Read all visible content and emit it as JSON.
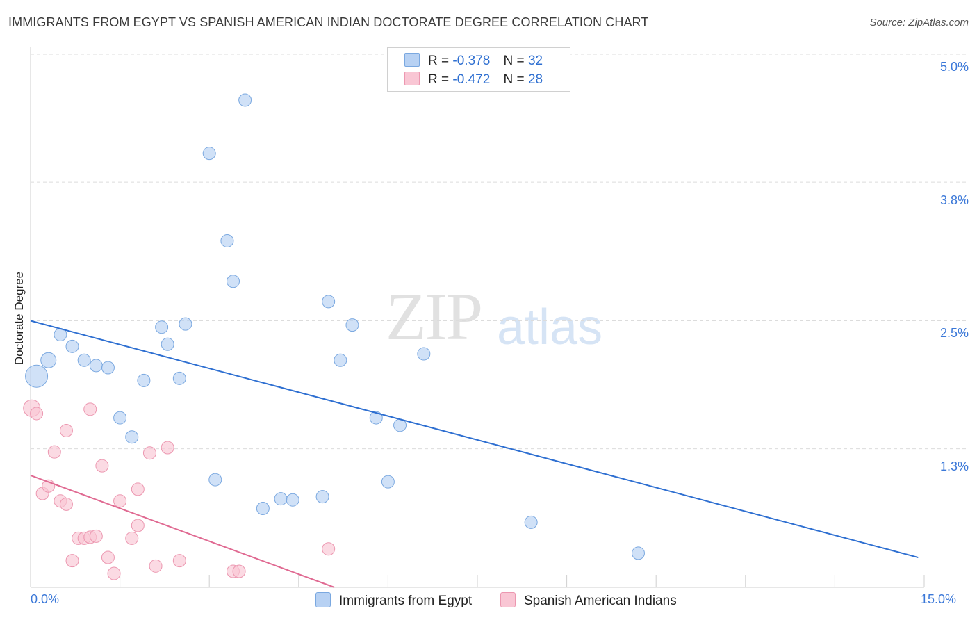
{
  "title": "IMMIGRANTS FROM EGYPT VS SPANISH AMERICAN INDIAN DOCTORATE DEGREE CORRELATION CHART",
  "source": "Source: ZipAtlas.com",
  "watermark": {
    "zip": "ZIP",
    "atlas": "atlas"
  },
  "legend": {
    "rows": [
      {
        "r_label": "R =",
        "r_value": "-0.378",
        "n_label": "N =",
        "n_value": "32"
      },
      {
        "r_label": "R =",
        "r_value": "-0.472",
        "n_label": "N =",
        "n_value": "28"
      }
    ]
  },
  "colors": {
    "blue_fill": "#b7d1f3",
    "blue_stroke": "#7aa8e0",
    "blue_line": "#2e6fd1",
    "pink_fill": "#f9c6d4",
    "pink_stroke": "#ec97b0",
    "pink_line": "#e06a92",
    "grid": "#dcdcdc",
    "tick_text": "#3b78d8"
  },
  "chart_data": {
    "type": "scatter",
    "title": "IMMIGRANTS FROM EGYPT VS SPANISH AMERICAN INDIAN DOCTORATE DEGREE CORRELATION CHART",
    "xlabel": "",
    "ylabel": "Doctorate Degree",
    "xlim": [
      0,
      15
    ],
    "ylim": [
      0,
      5.0
    ],
    "x_tick_labels": [
      "0.0%",
      "15.0%"
    ],
    "y_ticks": [
      1.3,
      2.5,
      3.8,
      5.0
    ],
    "y_tick_labels": [
      "1.3%",
      "2.5%",
      "3.8%",
      "5.0%"
    ],
    "grid": true,
    "series": [
      {
        "name": "Immigrants from Egypt",
        "color": "#b7d1f3",
        "points": [
          [
            0.1,
            1.98,
            16
          ],
          [
            0.3,
            2.13,
            11
          ],
          [
            0.5,
            2.37,
            9
          ],
          [
            0.7,
            2.26,
            9
          ],
          [
            0.9,
            2.13,
            9
          ],
          [
            1.1,
            2.08,
            9
          ],
          [
            1.3,
            2.06,
            9
          ],
          [
            1.5,
            1.59,
            9
          ],
          [
            1.7,
            1.41,
            9
          ],
          [
            1.9,
            1.94,
            9
          ],
          [
            2.2,
            2.44,
            9
          ],
          [
            2.3,
            2.28,
            9
          ],
          [
            2.5,
            1.96,
            9
          ],
          [
            2.6,
            2.47,
            9
          ],
          [
            3.0,
            4.07,
            9
          ],
          [
            3.1,
            1.01,
            9
          ],
          [
            3.3,
            3.25,
            9
          ],
          [
            3.4,
            2.87,
            9
          ],
          [
            3.6,
            4.57,
            9
          ],
          [
            3.9,
            0.74,
            9
          ],
          [
            4.2,
            0.83,
            9
          ],
          [
            4.4,
            0.82,
            9
          ],
          [
            4.9,
            0.85,
            9
          ],
          [
            5.0,
            2.68,
            9
          ],
          [
            5.2,
            2.13,
            9
          ],
          [
            5.4,
            2.46,
            9
          ],
          [
            5.8,
            1.59,
            9
          ],
          [
            6.0,
            0.99,
            9
          ],
          [
            6.2,
            1.52,
            9
          ],
          [
            6.6,
            2.19,
            9
          ],
          [
            8.4,
            0.61,
            9
          ],
          [
            10.2,
            0.32,
            9
          ]
        ],
        "trend": {
          "x": [
            0.0,
            14.9
          ],
          "y": [
            2.5,
            0.28
          ]
        }
      },
      {
        "name": "Spanish American Indians",
        "color": "#f9c6d4",
        "points": [
          [
            0.02,
            1.68,
            12
          ],
          [
            0.1,
            1.63,
            9
          ],
          [
            0.2,
            0.88,
            9
          ],
          [
            0.3,
            0.95,
            9
          ],
          [
            0.4,
            1.27,
            9
          ],
          [
            0.5,
            0.81,
            9
          ],
          [
            0.6,
            0.78,
            9
          ],
          [
            0.6,
            1.47,
            9
          ],
          [
            0.7,
            0.25,
            9
          ],
          [
            0.8,
            0.46,
            9
          ],
          [
            0.9,
            0.46,
            9
          ],
          [
            1.0,
            1.67,
            9
          ],
          [
            1.0,
            0.47,
            9
          ],
          [
            1.1,
            0.48,
            9
          ],
          [
            1.2,
            1.14,
            9
          ],
          [
            1.3,
            0.28,
            9
          ],
          [
            1.4,
            0.13,
            9
          ],
          [
            1.5,
            0.81,
            9
          ],
          [
            1.7,
            0.46,
            9
          ],
          [
            1.8,
            0.58,
            9
          ],
          [
            1.8,
            0.92,
            9
          ],
          [
            2.0,
            1.26,
            9
          ],
          [
            2.1,
            0.2,
            9
          ],
          [
            2.3,
            1.31,
            9
          ],
          [
            2.5,
            0.25,
            9
          ],
          [
            3.4,
            0.15,
            9
          ],
          [
            3.5,
            0.15,
            9
          ],
          [
            5.0,
            0.36,
            9
          ]
        ],
        "trend": {
          "x": [
            0.0,
            5.1
          ],
          "y": [
            1.05,
            0.0
          ]
        }
      }
    ]
  }
}
